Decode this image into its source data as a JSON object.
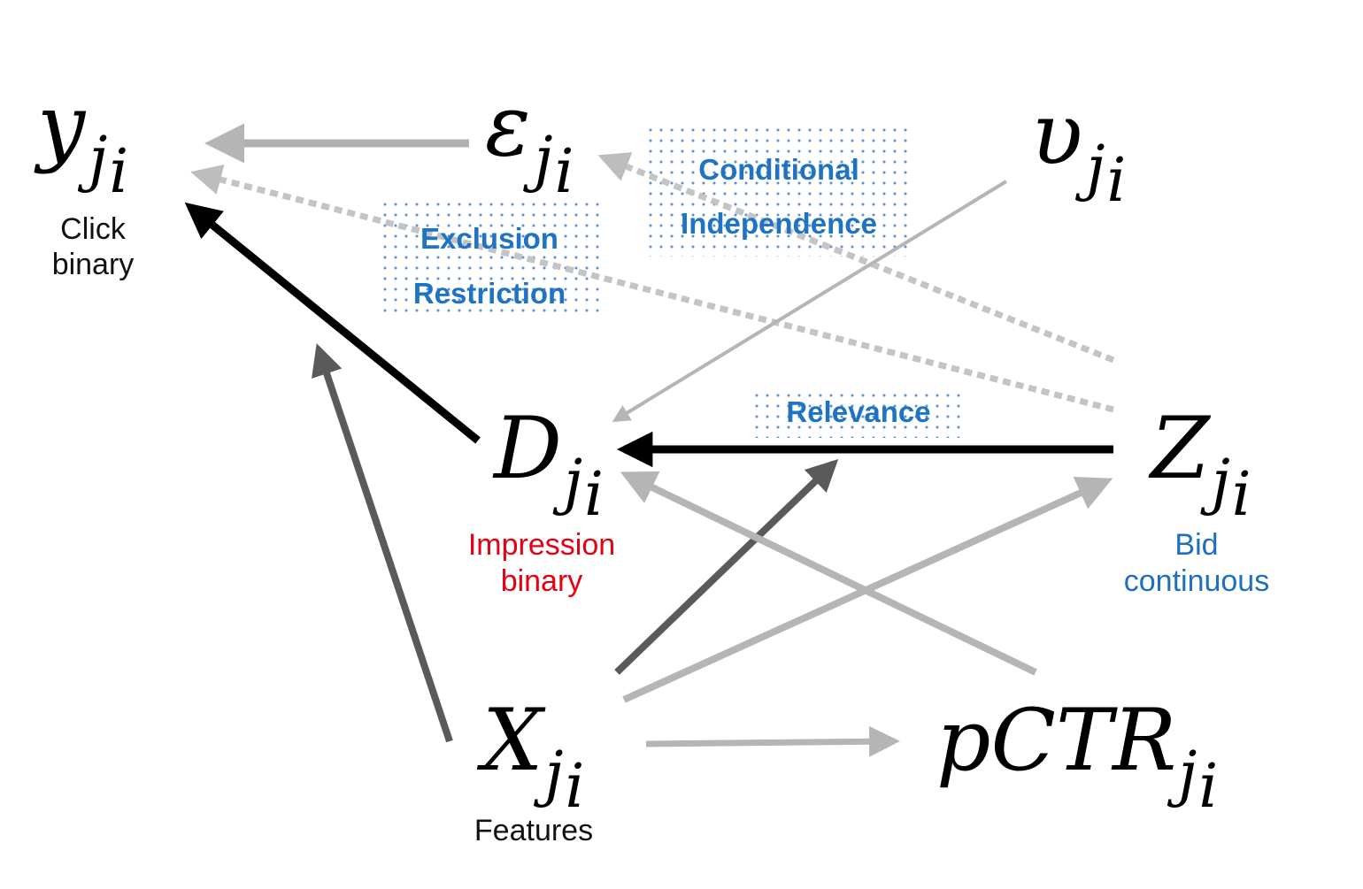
{
  "nodes": {
    "y": {
      "symbol": "y",
      "sub": "j",
      "subsub": "i",
      "label_lines": [
        "Click",
        "binary"
      ],
      "label_color": "#111111"
    },
    "epsilon": {
      "symbol": "ε",
      "sub": "j",
      "subsub": "i"
    },
    "upsilon": {
      "symbol": "υ",
      "sub": "j",
      "subsub": "i"
    },
    "d": {
      "symbol": "D",
      "sub": "j",
      "subsub": "i",
      "label_lines": [
        "Impression",
        "binary"
      ],
      "label_color": "#e60012"
    },
    "z": {
      "symbol": "Z",
      "sub": "j",
      "subsub": "i",
      "label_lines": [
        "Bid",
        "continuous"
      ],
      "label_color": "#1f6fbf"
    },
    "x": {
      "symbol": "X",
      "sub": "j",
      "subsub": "i",
      "label_lines": [
        "Features"
      ],
      "label_color": "#111111"
    },
    "pctr": {
      "symbol": "pCTR",
      "sub": "j",
      "subsub": "i"
    }
  },
  "annotations": {
    "exclusion_restriction": [
      "Exclusion",
      "Restriction"
    ],
    "conditional_independence": [
      "Conditional",
      "Independence"
    ],
    "relevance": [
      "Relevance"
    ]
  },
  "colors": {
    "arrow_black": "#000000",
    "arrow_dark_gray": "#5a5a5a",
    "arrow_light_gray": "#b5b5b5",
    "dashed_gray": "#b0b0b0",
    "annotation_blue": "#1f73c4",
    "dot_blue": "#5b8fd0"
  }
}
